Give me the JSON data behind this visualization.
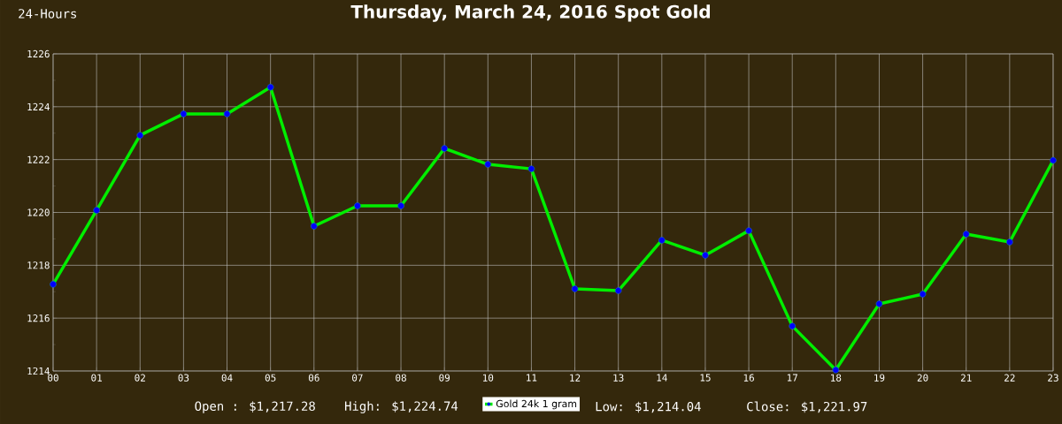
{
  "chart_data": {
    "type": "line",
    "title": "Thursday, March 24, 2016 Spot Gold",
    "categories": [
      "00",
      "01",
      "02",
      "03",
      "04",
      "05",
      "06",
      "07",
      "08",
      "09",
      "10",
      "11",
      "12",
      "13",
      "14",
      "15",
      "16",
      "17",
      "18",
      "19",
      "20",
      "21",
      "22",
      "23"
    ],
    "series": [
      {
        "name": "Gold 24k 1 gram",
        "color": "#00ee00",
        "values": [
          1217.28,
          1220.08,
          1222.92,
          1223.73,
          1223.73,
          1224.74,
          1219.48,
          1220.25,
          1220.25,
          1222.42,
          1221.82,
          1221.65,
          1217.11,
          1217.04,
          1218.95,
          1218.38,
          1219.31,
          1215.7,
          1214.04,
          1216.54,
          1216.91,
          1219.18,
          1218.88,
          1221.97
        ]
      }
    ],
    "ylim": [
      1214,
      1226
    ],
    "yticks": [
      1214,
      {
        "value": 1215,
        "label": null
      },
      1216,
      {
        "value": 1217,
        "label": null
      },
      1218,
      {
        "value": 1219,
        "label": null
      },
      1220,
      {
        "value": 1221,
        "label": null
      },
      1222,
      {
        "value": 1223,
        "label": null
      },
      1224,
      {
        "value": 1225,
        "label": null
      },
      1226
    ],
    "grid": true,
    "marker": "circle",
    "line_style": "solid",
    "legend": "bottom",
    "annotations": [
      "24-Hours",
      "Open : $1,217.28",
      "High: $1,224.74",
      "Low: $1,214.04",
      "Close: $1,221.97"
    ]
  }
}
